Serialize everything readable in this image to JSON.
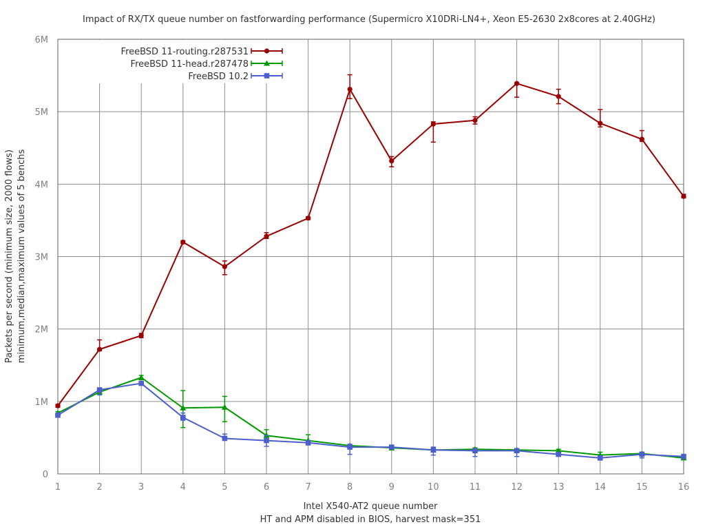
{
  "chart_data": {
    "type": "line",
    "title": "Impact of RX/TX queue number on fastforwarding performance (Supermicro X10DRi-LN4+, Xeon E5-2630 2x8cores at 2.40GHz)",
    "xlabel_lines": [
      "Intel X540-AT2 queue number",
      "HT and APM disabled in BIOS, harvest mask=351"
    ],
    "ylabel_lines": [
      "Packets per second (minimum size, 2000 flows)",
      "minimum,median,maximum values of 5 benchs"
    ],
    "x": [
      1,
      2,
      3,
      4,
      5,
      6,
      7,
      8,
      9,
      10,
      11,
      12,
      13,
      14,
      15,
      16
    ],
    "xlim": [
      1,
      16
    ],
    "ylim": [
      0,
      6000000
    ],
    "y_ticks": [
      0,
      1000000,
      2000000,
      3000000,
      4000000,
      5000000,
      6000000
    ],
    "y_tick_labels": [
      "0",
      "1M",
      "2M",
      "3M",
      "4M",
      "5M",
      "6M"
    ],
    "grid": true,
    "legend_position": "top-left",
    "error_bars": "min/median/max",
    "series": [
      {
        "name": "FreeBSD 11-routing.r287531",
        "color": "#990000",
        "marker": "circle",
        "values": [
          940000,
          1720000,
          1910000,
          3200000,
          2860000,
          3280000,
          3530000,
          5310000,
          4320000,
          4830000,
          4880000,
          5390000,
          5210000,
          4840000,
          4620000,
          3830000
        ],
        "min": [
          920000,
          1700000,
          1880000,
          3180000,
          2750000,
          3250000,
          3510000,
          5180000,
          4240000,
          4580000,
          4830000,
          5200000,
          5110000,
          4790000,
          4590000,
          3810000
        ],
        "max": [
          960000,
          1850000,
          1940000,
          3220000,
          2940000,
          3330000,
          3550000,
          5510000,
          4380000,
          4860000,
          4930000,
          5400000,
          5310000,
          5030000,
          4740000,
          3860000
        ]
      },
      {
        "name": "FreeBSD 11-head.r287478",
        "color": "#009900",
        "marker": "triangle",
        "values": [
          840000,
          1130000,
          1330000,
          910000,
          920000,
          530000,
          460000,
          390000,
          360000,
          330000,
          340000,
          330000,
          320000,
          260000,
          280000,
          220000
        ],
        "min": [
          820000,
          1110000,
          1300000,
          640000,
          720000,
          450000,
          400000,
          370000,
          330000,
          310000,
          320000,
          320000,
          300000,
          240000,
          260000,
          200000
        ],
        "max": [
          860000,
          1150000,
          1360000,
          1150000,
          1070000,
          610000,
          540000,
          400000,
          380000,
          350000,
          360000,
          350000,
          340000,
          300000,
          300000,
          240000
        ]
      },
      {
        "name": "FreeBSD 10.2",
        "color": "#4d5fcc",
        "marker": "square",
        "values": [
          810000,
          1160000,
          1250000,
          780000,
          490000,
          460000,
          430000,
          370000,
          370000,
          330000,
          320000,
          320000,
          270000,
          220000,
          270000,
          240000
        ],
        "min": [
          790000,
          1090000,
          1230000,
          740000,
          470000,
          380000,
          400000,
          270000,
          350000,
          260000,
          240000,
          240000,
          250000,
          200000,
          220000,
          210000
        ],
        "max": [
          830000,
          1170000,
          1270000,
          840000,
          550000,
          530000,
          460000,
          410000,
          390000,
          370000,
          350000,
          350000,
          290000,
          240000,
          300000,
          270000
        ]
      }
    ]
  }
}
